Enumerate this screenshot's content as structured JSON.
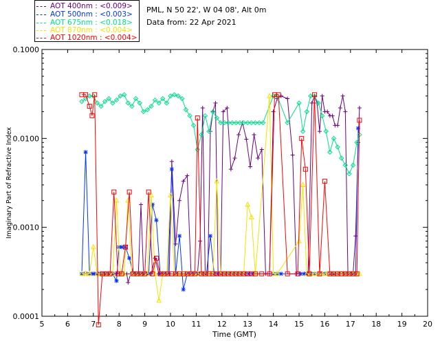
{
  "legend": [
    {
      "label": "AOT  400nm : <0.009>",
      "color": "#6a0080"
    },
    {
      "label": "AOT  500nm : <0.003>",
      "color": "#0033ff"
    },
    {
      "label": "AOT  675nm : <0.018>",
      "color": "#00e08a"
    },
    {
      "label": "AOT  870nm : <0.004>",
      "color": "#f2e400"
    },
    {
      "label": "AOT 1020nm : <0.004>",
      "color": "#ff0000"
    }
  ],
  "site": "PML, N 50 22', W 04 08', Alt 0m",
  "date_line": "Data from: 22 Apr 2021",
  "chart_data": {
    "type": "scatter",
    "xlabel": "Time (GMT)",
    "ylabel": "Imaginary Part of Refractive Index",
    "xlim": [
      5,
      20
    ],
    "ylim": [
      0.0001,
      0.1
    ],
    "yscale": "log",
    "x_ticks": [
      "5",
      "6",
      "7",
      "8",
      "9",
      "10",
      "11",
      "12",
      "13",
      "14",
      "15",
      "16",
      "17",
      "18",
      "19",
      "20"
    ],
    "y_ticks": [
      "0.0001",
      "0.0010",
      "0.0100",
      "0.1000"
    ],
    "series": [
      {
        "name": "AOT 400nm",
        "color": "#6a0080",
        "marker": "plus",
        "x": [
          6.55,
          6.65,
          6.75,
          6.85,
          6.95,
          7.05,
          7.2,
          7.35,
          7.5,
          7.65,
          7.8,
          7.9,
          8.0,
          8.1,
          8.2,
          8.3,
          8.35,
          8.45,
          8.6,
          8.75,
          8.85,
          8.95,
          9.1,
          9.25,
          9.4,
          9.55,
          9.7,
          9.8,
          9.95,
          10.05,
          10.2,
          10.35,
          10.5,
          10.65,
          10.8,
          10.95,
          11.05,
          11.15,
          11.25,
          11.35,
          11.45,
          11.55,
          11.65,
          11.75,
          11.85,
          11.95,
          12.05,
          12.2,
          12.35,
          12.5,
          12.65,
          12.8,
          12.95,
          13.1,
          13.25,
          13.4,
          13.55,
          13.7,
          13.85,
          14.0,
          14.15,
          14.3,
          14.55,
          14.75,
          14.9,
          15.05,
          15.2,
          15.35,
          15.5,
          15.6,
          15.7,
          15.8,
          15.9,
          16.0,
          16.1,
          16.2,
          16.3,
          16.4,
          16.5,
          16.6,
          16.7,
          16.8,
          16.9,
          17.0,
          17.1,
          17.2,
          17.3,
          17.35
        ],
        "y": [
          0.0003,
          0.0003,
          0.0003,
          0.0003,
          0.0003,
          0.0003,
          0.0003,
          0.0003,
          0.0003,
          0.0003,
          0.0003,
          0.0003,
          0.0003,
          0.0003,
          0.0003,
          0.0003,
          0.00024,
          0.0003,
          0.0003,
          0.0003,
          0.0018,
          0.0003,
          0.0003,
          0.0003,
          0.00045,
          0.0003,
          0.0003,
          0.0003,
          0.0003,
          0.0055,
          0.00065,
          0.002,
          0.0033,
          0.0038,
          0.0003,
          0.0003,
          0.0003,
          0.0007,
          0.022,
          0.0003,
          0.0003,
          0.012,
          0.02,
          0.025,
          0.0003,
          0.0003,
          0.02,
          0.022,
          0.0045,
          0.006,
          0.011,
          0.015,
          0.0098,
          0.0048,
          0.011,
          0.006,
          0.0075,
          0.0003,
          0.0003,
          0.02,
          0.028,
          0.03,
          0.028,
          0.0065,
          0.0003,
          0.0003,
          0.0003,
          0.0003,
          0.025,
          0.03,
          0.025,
          0.012,
          0.03,
          0.02,
          0.02,
          0.018,
          0.018,
          0.014,
          0.014,
          0.022,
          0.03,
          0.02,
          0.0003,
          0.0003,
          0.0003,
          0.0008,
          0.009,
          0.022
        ]
      },
      {
        "name": "AOT 500nm",
        "color": "#0033ff",
        "marker": "asterisk",
        "x": [
          6.55,
          6.7,
          6.85,
          7.0,
          7.15,
          7.3,
          7.45,
          7.6,
          7.75,
          7.9,
          8.0,
          8.1,
          8.25,
          8.4,
          8.55,
          8.7,
          8.85,
          9.0,
          9.15,
          9.3,
          9.45,
          9.6,
          9.75,
          9.9,
          10.05,
          10.2,
          10.35,
          10.5,
          10.65,
          10.8,
          10.95,
          11.1,
          11.25,
          11.4,
          11.55,
          11.7,
          11.85,
          12.0,
          12.15,
          12.3,
          12.45,
          12.6,
          12.75,
          12.9,
          13.05,
          13.2,
          14.0,
          14.15,
          14.3,
          15.05,
          15.2,
          15.3,
          15.45,
          15.6,
          15.8,
          16.0,
          16.2,
          16.35,
          16.55,
          16.75,
          16.9,
          17.05,
          17.2,
          17.3
        ],
        "y": [
          0.0003,
          0.007,
          0.0003,
          0.0003,
          0.0003,
          0.0003,
          0.0003,
          0.0003,
          0.0003,
          0.00025,
          0.0006,
          0.0006,
          0.0006,
          0.00045,
          0.0003,
          0.0003,
          0.0003,
          0.0003,
          0.0003,
          0.0018,
          0.0012,
          0.0003,
          0.0003,
          0.0003,
          0.0045,
          0.0003,
          0.0008,
          0.0002,
          0.0003,
          0.0003,
          0.0003,
          0.0003,
          0.0003,
          0.0003,
          0.0008,
          0.0003,
          0.0003,
          0.0003,
          0.0003,
          0.0003,
          0.0003,
          0.0003,
          0.0003,
          0.0003,
          0.0003,
          0.0003,
          0.0003,
          0.0003,
          0.0003,
          0.0003,
          0.0003,
          0.0003,
          0.0003,
          0.0003,
          0.0003,
          0.0003,
          0.0003,
          0.0003,
          0.0003,
          0.0003,
          0.0003,
          0.0003,
          0.0003,
          0.013
        ]
      },
      {
        "name": "AOT 675nm",
        "color": "#00e08a",
        "marker": "diamond",
        "x": [
          6.55,
          6.7,
          6.85,
          7.0,
          7.15,
          7.3,
          7.45,
          7.6,
          7.75,
          7.9,
          8.05,
          8.2,
          8.35,
          8.5,
          8.65,
          8.8,
          8.95,
          9.1,
          9.25,
          9.4,
          9.55,
          9.7,
          9.85,
          10.0,
          10.15,
          10.3,
          10.45,
          10.6,
          10.75,
          10.9,
          11.05,
          11.2,
          11.35,
          11.5,
          11.65,
          11.8,
          11.95,
          12.1,
          12.25,
          12.4,
          12.55,
          12.7,
          12.85,
          13.0,
          13.15,
          13.3,
          13.45,
          13.6,
          14.0,
          14.15,
          14.55,
          15.0,
          15.15,
          15.3,
          15.45,
          15.6,
          15.75,
          15.9,
          16.05,
          16.2,
          16.35,
          16.5,
          16.65,
          16.8,
          16.95,
          17.1,
          17.25,
          17.35
        ],
        "y": [
          0.026,
          0.028,
          0.03,
          0.03,
          0.025,
          0.023,
          0.026,
          0.028,
          0.025,
          0.027,
          0.03,
          0.031,
          0.025,
          0.023,
          0.028,
          0.025,
          0.02,
          0.021,
          0.023,
          0.027,
          0.025,
          0.028,
          0.025,
          0.03,
          0.031,
          0.03,
          0.028,
          0.021,
          0.018,
          0.014,
          0.0075,
          0.011,
          0.018,
          0.012,
          0.02,
          0.017,
          0.015,
          0.015,
          0.015,
          0.015,
          0.015,
          0.015,
          0.015,
          0.015,
          0.015,
          0.015,
          0.015,
          0.015,
          0.03,
          0.03,
          0.015,
          0.025,
          0.012,
          0.02,
          0.03,
          0.03,
          0.025,
          0.018,
          0.012,
          0.007,
          0.01,
          0.008,
          0.006,
          0.005,
          0.004,
          0.005,
          0.009,
          0.011
        ]
      },
      {
        "name": "AOT 870nm",
        "color": "#f2e400",
        "marker": "triangle",
        "x": [
          6.55,
          6.7,
          6.85,
          7.0,
          7.15,
          7.3,
          7.45,
          7.6,
          7.75,
          7.9,
          8.05,
          8.2,
          8.35,
          8.5,
          8.65,
          8.8,
          8.95,
          9.1,
          9.25,
          9.4,
          9.55,
          9.7,
          9.85,
          10.0,
          10.15,
          10.3,
          10.45,
          10.6,
          10.75,
          10.9,
          11.05,
          11.2,
          11.35,
          11.5,
          11.65,
          11.8,
          11.95,
          12.1,
          12.25,
          12.4,
          12.55,
          12.7,
          12.85,
          13.0,
          13.15,
          13.3,
          13.85,
          14.0,
          14.15,
          15.0,
          15.15,
          15.3,
          15.45,
          15.6,
          15.75,
          15.9,
          16.05,
          16.2,
          16.35,
          16.5,
          16.65,
          16.8,
          16.95,
          17.1,
          17.25,
          17.35
        ],
        "y": [
          0.0003,
          0.0003,
          0.0003,
          0.0006,
          0.0003,
          0.0003,
          0.0003,
          0.0003,
          0.0003,
          0.002,
          0.0003,
          0.0003,
          0.002,
          0.0003,
          0.0003,
          0.0003,
          0.0003,
          0.0003,
          0.0023,
          0.0003,
          0.00015,
          0.0003,
          0.0003,
          0.0023,
          0.0003,
          0.0003,
          0.0003,
          0.0003,
          0.0003,
          0.0003,
          0.0003,
          0.0003,
          0.0003,
          0.0003,
          0.0003,
          0.0033,
          0.0003,
          0.0003,
          0.0003,
          0.0003,
          0.0003,
          0.0003,
          0.0003,
          0.0018,
          0.0013,
          0.0003,
          0.03,
          0.0003,
          0.0003,
          0.0007,
          0.003,
          0.0003,
          0.0003,
          0.0003,
          0.0003,
          0.0003,
          0.0003,
          0.0003,
          0.0003,
          0.0003,
          0.0003,
          0.0003,
          0.0003,
          0.0003,
          0.0003,
          0.0003
        ]
      },
      {
        "name": "AOT 1020nm",
        "color": "#ff0000",
        "marker": "square",
        "x": [
          6.55,
          6.7,
          6.85,
          6.95,
          7.05,
          7.2,
          7.35,
          7.5,
          7.65,
          7.8,
          7.95,
          8.1,
          8.25,
          8.4,
          8.55,
          8.7,
          8.85,
          9.0,
          9.15,
          9.3,
          9.45,
          9.6,
          9.75,
          9.9,
          10.05,
          10.2,
          10.35,
          10.5,
          10.65,
          10.8,
          10.95,
          11.05,
          11.2,
          11.35,
          11.5,
          11.65,
          11.8,
          11.95,
          12.1,
          12.25,
          12.4,
          12.55,
          12.7,
          12.85,
          13.0,
          13.15,
          13.3,
          13.55,
          13.85,
          14.05,
          14.2,
          14.55,
          14.95,
          15.1,
          15.25,
          15.4,
          15.6,
          15.8,
          16.0,
          16.2,
          16.35,
          16.5,
          16.65,
          16.8,
          16.95,
          17.1,
          17.25,
          17.35
        ],
        "y": [
          0.031,
          0.031,
          0.023,
          0.018,
          0.031,
          8e-05,
          0.0003,
          0.0003,
          0.0003,
          0.0025,
          0.0003,
          0.0003,
          0.0006,
          0.0025,
          0.0003,
          0.0003,
          0.0003,
          0.0003,
          0.0025,
          0.0003,
          0.00045,
          0.0003,
          0.0003,
          0.0003,
          0.0003,
          0.0003,
          0.0003,
          0.0003,
          0.0003,
          0.0003,
          0.0003,
          0.017,
          0.0003,
          0.0003,
          0.0003,
          0.0003,
          0.0003,
          0.0003,
          0.0003,
          0.0003,
          0.0003,
          0.0003,
          0.0003,
          0.0003,
          0.0003,
          0.0003,
          0.0003,
          0.0003,
          0.0003,
          0.031,
          0.031,
          0.0003,
          0.0003,
          0.01,
          0.0045,
          0.0003,
          0.031,
          0.0003,
          0.0033,
          0.0003,
          0.0003,
          0.0003,
          0.0003,
          0.0003,
          0.0003,
          0.0003,
          0.0003,
          0.016
        ]
      }
    ]
  }
}
